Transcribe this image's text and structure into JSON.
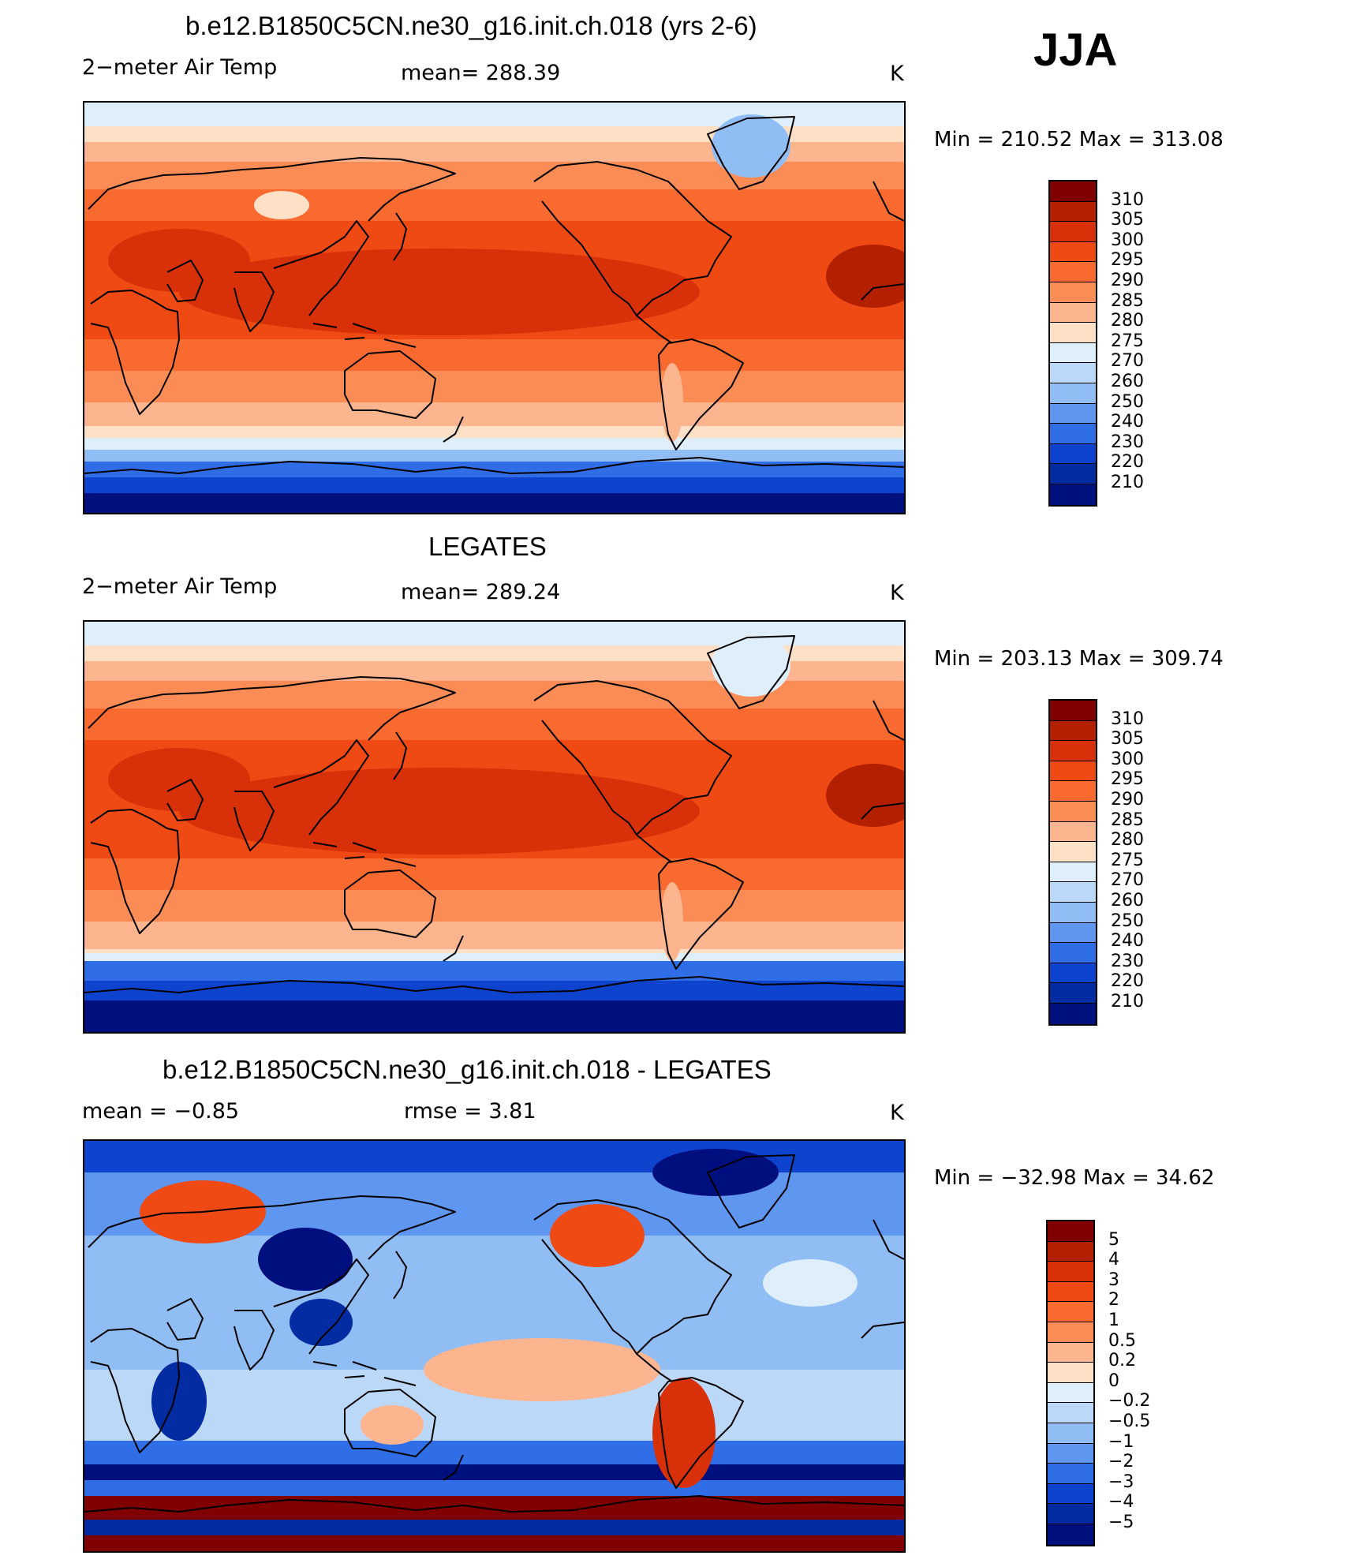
{
  "season": "JJA",
  "units": "K",
  "panels": [
    {
      "title": "b.e12.B1850C5CN.ne30_g16.init.ch.018 (yrs 2-6)",
      "variable": "2−meter Air Temp",
      "stat_text": "mean=  288.39",
      "units": "K",
      "minmax": "Min  =  210.52  Max  =  313.08",
      "kind": "abs"
    },
    {
      "title": "LEGATES",
      "variable": "2−meter Air Temp",
      "stat_text": "mean=  289.24",
      "units": "K",
      "minmax": "Min  =  203.13  Max  =  309.74",
      "kind": "obs"
    },
    {
      "title": "b.e12.B1850C5CN.ne30_g16.init.ch.018 - LEGATES",
      "mean_text": "mean  =    −0.85",
      "rmse_text": "rmse  =     3.81",
      "units": "K",
      "minmax": "Min  =  −32.98  Max  =    34.62",
      "kind": "diff"
    }
  ],
  "colorbar_abs": {
    "labels": [
      "310",
      "305",
      "300",
      "295",
      "290",
      "285",
      "280",
      "275",
      "270",
      "260",
      "250",
      "240",
      "230",
      "220",
      "210"
    ],
    "colors": [
      "#800000",
      "#b32000",
      "#d83008",
      "#f04a14",
      "#f86a30",
      "#fb8c55",
      "#fcb58e",
      "#fde0c6",
      "#deeefb",
      "#bcd8f8",
      "#91bdf5",
      "#5f96ef",
      "#2f6ee6",
      "#0d43cd",
      "#032ca3",
      "#000f7e"
    ]
  },
  "colorbar_diff": {
    "labels": [
      "5",
      "4",
      "3",
      "2",
      "1",
      "0.5",
      "0.2",
      "0",
      "−0.2",
      "−0.5",
      "−1",
      "−2",
      "−3",
      "−4",
      "−5"
    ],
    "colors": [
      "#800000",
      "#b32000",
      "#d83008",
      "#f04a14",
      "#f86a30",
      "#fb8c55",
      "#fcb58e",
      "#fde0c6",
      "#deeefb",
      "#bcd8f8",
      "#91bdf5",
      "#5f96ef",
      "#2f6ee6",
      "#0d43cd",
      "#032ca3",
      "#000f7e"
    ]
  }
}
